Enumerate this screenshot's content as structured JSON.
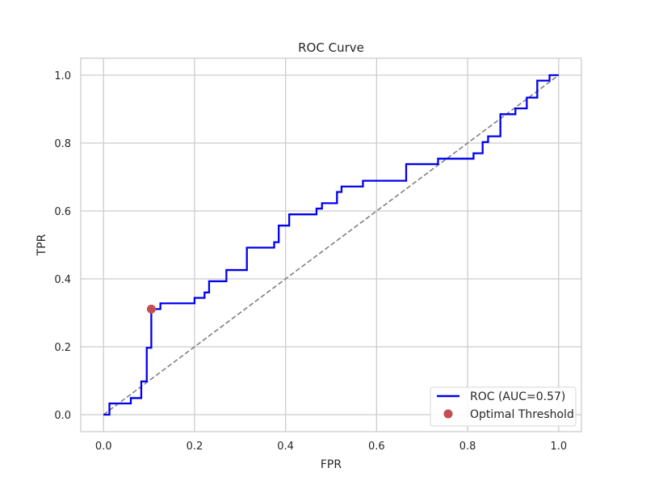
{
  "chart_data": {
    "type": "line",
    "title": "ROC Curve",
    "xlabel": "FPR",
    "ylabel": "TPR",
    "xlim": [
      -0.05,
      1.05
    ],
    "ylim": [
      -0.05,
      1.05
    ],
    "xticks": [
      0.0,
      0.2,
      0.4,
      0.6,
      0.8,
      1.0
    ],
    "yticks": [
      0.0,
      0.2,
      0.4,
      0.6,
      0.8,
      1.0
    ],
    "xtick_labels": [
      "0.0",
      "0.2",
      "0.4",
      "0.6",
      "0.8",
      "1.0"
    ],
    "ytick_labels": [
      "0.0",
      "0.2",
      "0.4",
      "0.6",
      "0.8",
      "1.0"
    ],
    "grid": true,
    "legend_position": "lower-right",
    "series": [
      {
        "name": "ROC (AUC=0.57)",
        "color": "#0000ee",
        "style": "solid",
        "x": [
          0.0,
          0.013,
          0.013,
          0.06,
          0.06,
          0.083,
          0.083,
          0.095,
          0.095,
          0.105,
          0.105,
          0.125,
          0.125,
          0.2,
          0.2,
          0.222,
          0.222,
          0.232,
          0.232,
          0.27,
          0.27,
          0.315,
          0.315,
          0.375,
          0.375,
          0.385,
          0.385,
          0.408,
          0.408,
          0.468,
          0.468,
          0.48,
          0.48,
          0.513,
          0.513,
          0.523,
          0.523,
          0.57,
          0.57,
          0.665,
          0.665,
          0.735,
          0.735,
          0.813,
          0.813,
          0.833,
          0.833,
          0.845,
          0.845,
          0.872,
          0.872,
          0.905,
          0.905,
          0.93,
          0.93,
          0.953,
          0.953,
          0.98,
          0.98,
          1.0
        ],
        "y": [
          0.0,
          0.0,
          0.033,
          0.033,
          0.049,
          0.049,
          0.098,
          0.098,
          0.197,
          0.197,
          0.311,
          0.311,
          0.328,
          0.328,
          0.344,
          0.344,
          0.36,
          0.36,
          0.393,
          0.393,
          0.426,
          0.426,
          0.492,
          0.492,
          0.508,
          0.508,
          0.557,
          0.557,
          0.59,
          0.59,
          0.607,
          0.607,
          0.623,
          0.623,
          0.656,
          0.656,
          0.672,
          0.672,
          0.689,
          0.689,
          0.738,
          0.738,
          0.754,
          0.754,
          0.77,
          0.77,
          0.803,
          0.803,
          0.82,
          0.82,
          0.885,
          0.885,
          0.902,
          0.902,
          0.934,
          0.934,
          0.984,
          0.984,
          1.0,
          1.0
        ]
      },
      {
        "name": "",
        "color": "#808080",
        "style": "dashed",
        "x": [
          0.0,
          1.0
        ],
        "y": [
          0.0,
          1.0
        ]
      }
    ],
    "points": [
      {
        "name": "Optimal Threshold",
        "x": 0.105,
        "y": 0.311,
        "color": "#c44e52"
      }
    ]
  }
}
